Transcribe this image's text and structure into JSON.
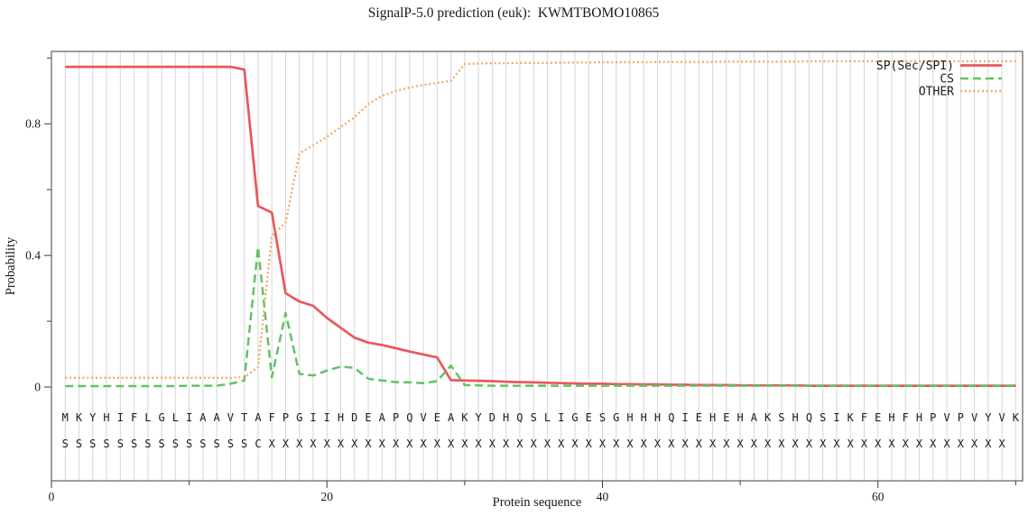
{
  "title": "SignalP-5.0 prediction (euk):  KWMTBOMO10865",
  "chart_data": {
    "type": "line",
    "title": "SignalP-5.0 prediction (euk):  KWMTBOMO10865",
    "xlabel": "Protein sequence",
    "ylabel": "Probability",
    "xlim": [
      0,
      70.5
    ],
    "ylim": [
      -0.285,
      1.02
    ],
    "xticks_labeled": [
      0,
      20,
      40,
      60
    ],
    "xticks_minor": [
      10,
      30,
      50,
      70
    ],
    "yticks_labeled": [
      0,
      0.4,
      0.8
    ],
    "yticks_minor": [
      0.2,
      0.6,
      1.0
    ],
    "grid": "vertical gridline at every residue position 1-70",
    "legend_position": "top-right-inside",
    "axis_color": "#3c3c3c",
    "grid_color": "#d6d6d6",
    "sequence_color": "#3d3d3d",
    "x": [
      1,
      2,
      3,
      4,
      5,
      6,
      7,
      8,
      9,
      10,
      11,
      12,
      13,
      14,
      15,
      16,
      17,
      18,
      19,
      20,
      21,
      22,
      23,
      24,
      25,
      26,
      27,
      28,
      29,
      30,
      31,
      32,
      33,
      34,
      35,
      36,
      37,
      38,
      39,
      40,
      41,
      42,
      43,
      44,
      45,
      46,
      47,
      48,
      49,
      50,
      51,
      52,
      53,
      54,
      55,
      56,
      57,
      58,
      59,
      60,
      61,
      62,
      63,
      64,
      65,
      66,
      67,
      68,
      69,
      70
    ],
    "sequence": "MKYHIFLGLIAAVTAFPGIIHDEAPQVEAKYDHQSLIGESGHHHQIEHEHAKSHQSIKFEHFHPVPVYVK",
    "annotation": "SSSSSSSSSSSSSSCXXXXXXXXXXXXXXXXXXXXXXXXXXXXXXXXXXXXXXXXXXXXXXXXXXXXXX",
    "series": [
      {
        "name": "SP(Sec/SPI)",
        "color": "#e8585c",
        "style": "solid",
        "values": [
          0.973,
          0.973,
          0.973,
          0.973,
          0.973,
          0.973,
          0.973,
          0.973,
          0.973,
          0.973,
          0.973,
          0.973,
          0.973,
          0.965,
          0.55,
          0.53,
          0.285,
          0.26,
          0.247,
          0.21,
          0.18,
          0.15,
          0.135,
          0.128,
          0.118,
          0.108,
          0.099,
          0.09,
          0.021,
          0.02,
          0.019,
          0.018,
          0.016,
          0.015,
          0.014,
          0.013,
          0.012,
          0.011,
          0.01,
          0.01,
          0.009,
          0.009,
          0.008,
          0.008,
          0.007,
          0.007,
          0.006,
          0.006,
          0.006,
          0.005,
          0.005,
          0.005,
          0.005,
          0.005,
          0.004,
          0.004,
          0.004,
          0.004,
          0.004,
          0.004,
          0.004,
          0.004,
          0.004,
          0.004,
          0.004,
          0.004,
          0.004,
          0.004,
          0.004,
          0.004
        ]
      },
      {
        "name": "CS",
        "color": "#63c263",
        "style": "dashed",
        "values": [
          0.003,
          0.003,
          0.003,
          0.003,
          0.003,
          0.003,
          0.003,
          0.003,
          0.003,
          0.004,
          0.004,
          0.004,
          0.01,
          0.02,
          0.425,
          0.03,
          0.225,
          0.04,
          0.035,
          0.05,
          0.062,
          0.058,
          0.025,
          0.02,
          0.015,
          0.014,
          0.012,
          0.018,
          0.065,
          0.006,
          0.005,
          0.004,
          0.004,
          0.004,
          0.004,
          0.004,
          0.004,
          0.004,
          0.004,
          0.004,
          0.004,
          0.004,
          0.004,
          0.004,
          0.004,
          0.004,
          0.004,
          0.004,
          0.004,
          0.004,
          0.004,
          0.004,
          0.004,
          0.004,
          0.004,
          0.004,
          0.004,
          0.004,
          0.004,
          0.004,
          0.004,
          0.004,
          0.004,
          0.004,
          0.004,
          0.004,
          0.004,
          0.004,
          0.004,
          0.004
        ]
      },
      {
        "name": "OTHER",
        "color": "#f3a95f",
        "style": "dotted",
        "values": [
          0.028,
          0.028,
          0.028,
          0.028,
          0.028,
          0.028,
          0.028,
          0.028,
          0.028,
          0.028,
          0.028,
          0.028,
          0.028,
          0.03,
          0.06,
          0.46,
          0.5,
          0.71,
          0.735,
          0.76,
          0.79,
          0.82,
          0.86,
          0.885,
          0.9,
          0.91,
          0.918,
          0.924,
          0.93,
          0.982,
          0.983,
          0.984,
          0.984,
          0.985,
          0.985,
          0.985,
          0.986,
          0.986,
          0.986,
          0.987,
          0.987,
          0.987,
          0.987,
          0.988,
          0.988,
          0.988,
          0.988,
          0.988,
          0.989,
          0.989,
          0.989,
          0.989,
          0.989,
          0.989,
          0.99,
          0.99,
          0.99,
          0.99,
          0.99,
          0.99,
          0.99,
          0.99,
          0.99,
          0.99,
          0.99,
          0.99,
          0.99,
          0.99,
          0.99,
          0.99
        ]
      }
    ]
  }
}
